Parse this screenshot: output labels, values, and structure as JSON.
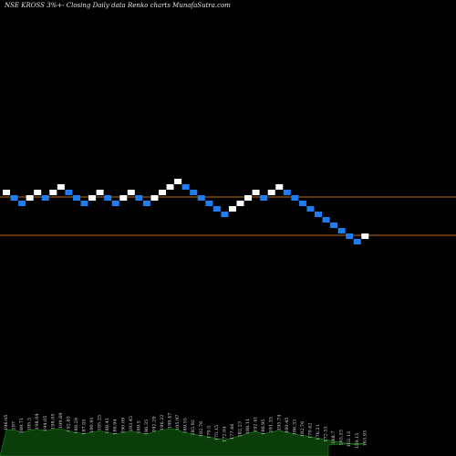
{
  "header": {
    "symbol": "NSE KROSS",
    "box_size": "3%",
    "chart_kind": "Closing Daily data",
    "chart_style": "Renko",
    "source": "charts MunafaSutra.com"
  },
  "colors": {
    "background": "#000000",
    "up_brick": "#ffffff",
    "down_brick": "#1e7df0",
    "hline": "#b86b14",
    "volume_fill": "#0b3d0b",
    "volume_outline": "#1f8a1f"
  },
  "chart_data": {
    "type": "renko",
    "brick_size_pct": 3,
    "directions": [
      "up",
      "down",
      "down",
      "up",
      "up",
      "down",
      "up",
      "up",
      "down",
      "down",
      "down",
      "up",
      "up",
      "down",
      "down",
      "up",
      "up",
      "down",
      "down",
      "up",
      "up",
      "up",
      "up",
      "down",
      "down",
      "down",
      "down",
      "down",
      "down",
      "up",
      "up",
      "up",
      "up",
      "down",
      "up",
      "up",
      "down",
      "down",
      "down",
      "down",
      "down",
      "down",
      "down",
      "down",
      "down",
      "down",
      "up"
    ],
    "reference_levels": [
      230.5,
      198.4
    ],
    "volume_labels": [
      "196.05",
      "197",
      "189.71",
      "195.5",
      "198.04",
      "194.05",
      "198.05",
      "199.69",
      "192.85",
      "189.29",
      "187.05",
      "190.91",
      "195.25",
      "189.41",
      "186.94",
      "190.09",
      "193.45",
      "189.5",
      "186.35",
      "192.29",
      "196.22",
      "199.47",
      "195.97",
      "189.55",
      "185.92",
      "182.76",
      "179.5",
      "175.15",
      "172.04",
      "177.46",
      "182.23",
      "188.11",
      "192.41",
      "186.95",
      "191.33",
      "195.74",
      "190.45",
      "186.33",
      "182.76",
      "179.62",
      "176.21",
      "172.55",
      "168.7",
      "165.33",
      "162.13",
      "159.15",
      "163.93"
    ]
  }
}
